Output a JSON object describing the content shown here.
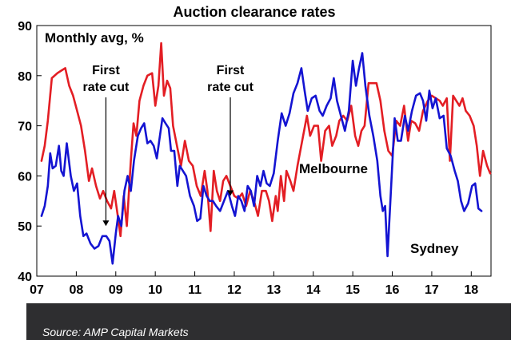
{
  "chart_data": {
    "type": "line",
    "title": "Auction clearance rates",
    "ylabel": "Monthly avg, %",
    "xlabel": "",
    "ylim": [
      40,
      90
    ],
    "xlim": [
      2007,
      2018.5
    ],
    "y_ticks": [
      40,
      50,
      60,
      70,
      80,
      90
    ],
    "x_ticks": [
      {
        "x": 2007,
        "label": "07"
      },
      {
        "x": 2008,
        "label": "08"
      },
      {
        "x": 2009,
        "label": "09"
      },
      {
        "x": 2010,
        "label": "10"
      },
      {
        "x": 2011,
        "label": "11"
      },
      {
        "x": 2012,
        "label": "12"
      },
      {
        "x": 2013,
        "label": "13"
      },
      {
        "x": 2014,
        "label": "14"
      },
      {
        "x": 2015,
        "label": "15"
      },
      {
        "x": 2016,
        "label": "16"
      },
      {
        "x": 2017,
        "label": "17"
      },
      {
        "x": 2018,
        "label": "18"
      }
    ],
    "grid": false,
    "series": [
      {
        "name": "Melbourne",
        "color": "#e31e24",
        "points": [
          [
            2007.12,
            63
          ],
          [
            2007.2,
            66
          ],
          [
            2007.28,
            71
          ],
          [
            2007.38,
            79.5
          ],
          [
            2007.52,
            80.5
          ],
          [
            2007.62,
            81
          ],
          [
            2007.72,
            81.5
          ],
          [
            2007.82,
            78
          ],
          [
            2007.92,
            76
          ],
          [
            2008.02,
            73
          ],
          [
            2008.12,
            70
          ],
          [
            2008.22,
            65
          ],
          [
            2008.32,
            59
          ],
          [
            2008.4,
            61.5
          ],
          [
            2008.5,
            58
          ],
          [
            2008.6,
            55.5
          ],
          [
            2008.68,
            57
          ],
          [
            2008.78,
            55
          ],
          [
            2008.88,
            53.5
          ],
          [
            2008.96,
            57
          ],
          [
            2009.05,
            52
          ],
          [
            2009.12,
            48
          ],
          [
            2009.2,
            56
          ],
          [
            2009.28,
            50
          ],
          [
            2009.38,
            63
          ],
          [
            2009.45,
            70.5
          ],
          [
            2009.52,
            68
          ],
          [
            2009.6,
            75
          ],
          [
            2009.7,
            78
          ],
          [
            2009.8,
            80
          ],
          [
            2009.92,
            80.5
          ],
          [
            2010.0,
            74
          ],
          [
            2010.08,
            78
          ],
          [
            2010.15,
            86.5
          ],
          [
            2010.22,
            76
          ],
          [
            2010.3,
            79
          ],
          [
            2010.38,
            77.5
          ],
          [
            2010.45,
            70
          ],
          [
            2010.55,
            66
          ],
          [
            2010.65,
            62
          ],
          [
            2010.75,
            67
          ],
          [
            2010.85,
            63
          ],
          [
            2010.95,
            62
          ],
          [
            2011.05,
            58
          ],
          [
            2011.15,
            56
          ],
          [
            2011.25,
            61
          ],
          [
            2011.32,
            57
          ],
          [
            2011.4,
            49
          ],
          [
            2011.48,
            61
          ],
          [
            2011.56,
            57
          ],
          [
            2011.64,
            55
          ],
          [
            2011.72,
            59
          ],
          [
            2011.8,
            60
          ],
          [
            2011.9,
            58
          ],
          [
            2012.0,
            56
          ],
          [
            2012.1,
            55.5
          ],
          [
            2012.2,
            56.5
          ],
          [
            2012.3,
            54
          ],
          [
            2012.4,
            57
          ],
          [
            2012.5,
            55
          ],
          [
            2012.6,
            52
          ],
          [
            2012.7,
            57
          ],
          [
            2012.8,
            57
          ],
          [
            2012.88,
            55
          ],
          [
            2012.96,
            51
          ],
          [
            2013.05,
            56
          ],
          [
            2013.1,
            53
          ],
          [
            2013.18,
            60
          ],
          [
            2013.26,
            55
          ],
          [
            2013.32,
            61
          ],
          [
            2013.42,
            59
          ],
          [
            2013.5,
            57
          ],
          [
            2013.6,
            62
          ],
          [
            2013.72,
            67
          ],
          [
            2013.84,
            72
          ],
          [
            2013.92,
            68
          ],
          [
            2014.02,
            70
          ],
          [
            2014.12,
            70
          ],
          [
            2014.2,
            63
          ],
          [
            2014.3,
            69
          ],
          [
            2014.4,
            70
          ],
          [
            2014.48,
            66
          ],
          [
            2014.58,
            68
          ],
          [
            2014.66,
            71
          ],
          [
            2014.76,
            72
          ],
          [
            2014.86,
            71
          ],
          [
            2014.96,
            74
          ],
          [
            2015.06,
            68
          ],
          [
            2015.14,
            66
          ],
          [
            2015.22,
            69
          ],
          [
            2015.3,
            70
          ],
          [
            2015.4,
            78.5
          ],
          [
            2015.5,
            78.5
          ],
          [
            2015.6,
            78.5
          ],
          [
            2015.7,
            75
          ],
          [
            2015.8,
            69
          ],
          [
            2015.9,
            65
          ],
          [
            2016.0,
            64
          ],
          [
            2016.1,
            71
          ],
          [
            2016.2,
            70
          ],
          [
            2016.3,
            74
          ],
          [
            2016.4,
            67
          ],
          [
            2016.48,
            71
          ],
          [
            2016.58,
            70.5
          ],
          [
            2016.68,
            69
          ],
          [
            2016.78,
            73
          ],
          [
            2016.9,
            75
          ],
          [
            2017.0,
            76
          ],
          [
            2017.1,
            75.5
          ],
          [
            2017.2,
            75
          ],
          [
            2017.28,
            74
          ],
          [
            2017.38,
            75.5
          ],
          [
            2017.46,
            63
          ],
          [
            2017.54,
            76
          ],
          [
            2017.62,
            75
          ],
          [
            2017.7,
            74
          ],
          [
            2017.78,
            75.5
          ],
          [
            2017.86,
            73
          ],
          [
            2017.96,
            72
          ],
          [
            2018.06,
            70
          ],
          [
            2018.14,
            66
          ],
          [
            2018.22,
            60
          ],
          [
            2018.3,
            65
          ],
          [
            2018.4,
            62
          ],
          [
            2018.48,
            60.5
          ]
        ]
      },
      {
        "name": "Sydney",
        "color": "#1414d2",
        "points": [
          [
            2007.12,
            52
          ],
          [
            2007.2,
            54
          ],
          [
            2007.28,
            58
          ],
          [
            2007.34,
            64.5
          ],
          [
            2007.4,
            61.5
          ],
          [
            2007.48,
            62
          ],
          [
            2007.56,
            66
          ],
          [
            2007.62,
            61
          ],
          [
            2007.68,
            60
          ],
          [
            2007.76,
            66.5
          ],
          [
            2007.86,
            60
          ],
          [
            2007.94,
            57
          ],
          [
            2008.02,
            58.5
          ],
          [
            2008.1,
            52
          ],
          [
            2008.18,
            48
          ],
          [
            2008.26,
            48.5
          ],
          [
            2008.36,
            46.5
          ],
          [
            2008.46,
            45.5
          ],
          [
            2008.56,
            46
          ],
          [
            2008.66,
            48
          ],
          [
            2008.76,
            48
          ],
          [
            2008.84,
            47
          ],
          [
            2008.92,
            42.5
          ],
          [
            2009.0,
            48.5
          ],
          [
            2009.06,
            52
          ],
          [
            2009.14,
            50
          ],
          [
            2009.22,
            57
          ],
          [
            2009.3,
            60
          ],
          [
            2009.38,
            57
          ],
          [
            2009.46,
            63
          ],
          [
            2009.56,
            68
          ],
          [
            2009.64,
            69.5
          ],
          [
            2009.72,
            70.5
          ],
          [
            2009.8,
            66.5
          ],
          [
            2009.88,
            67
          ],
          [
            2009.96,
            66
          ],
          [
            2010.04,
            63.5
          ],
          [
            2010.1,
            67
          ],
          [
            2010.18,
            71.5
          ],
          [
            2010.26,
            70.5
          ],
          [
            2010.34,
            69.5
          ],
          [
            2010.4,
            65
          ],
          [
            2010.48,
            65
          ],
          [
            2010.56,
            58
          ],
          [
            2010.62,
            62
          ],
          [
            2010.7,
            61
          ],
          [
            2010.78,
            60
          ],
          [
            2010.88,
            56
          ],
          [
            2010.98,
            54
          ],
          [
            2011.06,
            51
          ],
          [
            2011.14,
            51.5
          ],
          [
            2011.22,
            58
          ],
          [
            2011.3,
            56
          ],
          [
            2011.38,
            55
          ],
          [
            2011.46,
            55
          ],
          [
            2011.54,
            54
          ],
          [
            2011.64,
            53
          ],
          [
            2011.74,
            55
          ],
          [
            2011.84,
            57
          ],
          [
            2011.94,
            54
          ],
          [
            2012.02,
            52
          ],
          [
            2012.1,
            56
          ],
          [
            2012.18,
            55
          ],
          [
            2012.26,
            53
          ],
          [
            2012.34,
            58
          ],
          [
            2012.42,
            57
          ],
          [
            2012.5,
            54
          ],
          [
            2012.58,
            60
          ],
          [
            2012.66,
            58
          ],
          [
            2012.74,
            61
          ],
          [
            2012.82,
            58.5
          ],
          [
            2012.9,
            58
          ],
          [
            2013.0,
            60.5
          ],
          [
            2013.1,
            67
          ],
          [
            2013.2,
            72.5
          ],
          [
            2013.3,
            70
          ],
          [
            2013.4,
            72.5
          ],
          [
            2013.5,
            76.5
          ],
          [
            2013.6,
            78.5
          ],
          [
            2013.7,
            81.5
          ],
          [
            2013.78,
            77
          ],
          [
            2013.86,
            73
          ],
          [
            2013.96,
            75.5
          ],
          [
            2014.06,
            76
          ],
          [
            2014.16,
            73
          ],
          [
            2014.24,
            72
          ],
          [
            2014.34,
            74
          ],
          [
            2014.44,
            75.5
          ],
          [
            2014.52,
            79.5
          ],
          [
            2014.6,
            75
          ],
          [
            2014.7,
            72
          ],
          [
            2014.8,
            69
          ],
          [
            2014.9,
            73
          ],
          [
            2015.0,
            83
          ],
          [
            2015.08,
            78
          ],
          [
            2015.16,
            81.5
          ],
          [
            2015.24,
            84.5
          ],
          [
            2015.32,
            78
          ],
          [
            2015.42,
            72
          ],
          [
            2015.52,
            68
          ],
          [
            2015.62,
            63
          ],
          [
            2015.7,
            56
          ],
          [
            2015.76,
            53
          ],
          [
            2015.82,
            54
          ],
          [
            2015.88,
            44
          ],
          [
            2015.96,
            56
          ],
          [
            2016.06,
            71.5
          ],
          [
            2016.14,
            67
          ],
          [
            2016.22,
            67
          ],
          [
            2016.32,
            72
          ],
          [
            2016.4,
            69
          ],
          [
            2016.5,
            73
          ],
          [
            2016.6,
            76
          ],
          [
            2016.7,
            76.5
          ],
          [
            2016.78,
            75
          ],
          [
            2016.86,
            71
          ],
          [
            2016.94,
            77
          ],
          [
            2017.02,
            73.5
          ],
          [
            2017.1,
            75.5
          ],
          [
            2017.2,
            71.5
          ],
          [
            2017.3,
            72
          ],
          [
            2017.38,
            65.5
          ],
          [
            2017.48,
            64
          ],
          [
            2017.58,
            61
          ],
          [
            2017.66,
            59
          ],
          [
            2017.74,
            55
          ],
          [
            2017.82,
            53
          ],
          [
            2017.92,
            54.5
          ],
          [
            2018.02,
            58
          ],
          [
            2018.1,
            58.5
          ],
          [
            2018.18,
            53.5
          ],
          [
            2018.26,
            53
          ]
        ]
      }
    ],
    "annotations": [
      {
        "lines": [
          "First",
          "rate cut"
        ],
        "x": 2008.75,
        "arrow_to_y": 50
      },
      {
        "lines": [
          "First",
          "rate cut"
        ],
        "x": 2011.9,
        "arrow_to_y": 56
      }
    ],
    "series_labels": [
      {
        "series": "Melbourne",
        "text": "Melbourne"
      },
      {
        "series": "Sydney",
        "text": "Sydney"
      }
    ]
  },
  "source": "Source: AMP Capital Markets"
}
